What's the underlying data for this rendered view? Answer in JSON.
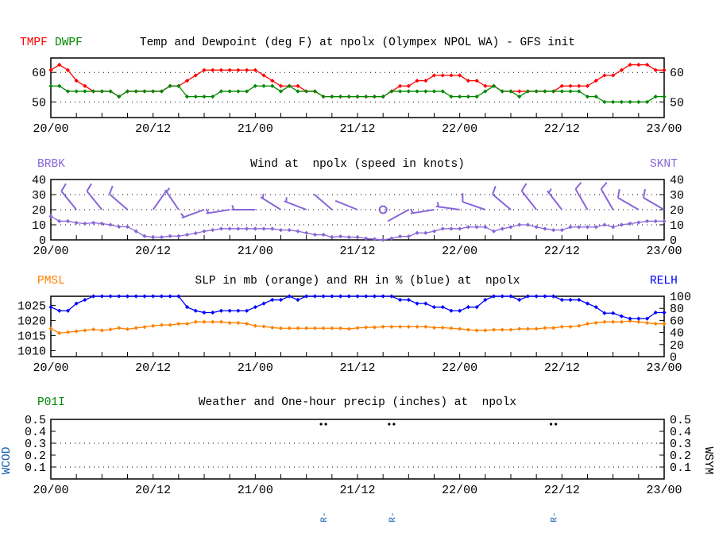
{
  "colors": {
    "tmpf": "#ff0000",
    "dwpf": "#008800",
    "wind": "#8866d8",
    "pmsl": "#ff8000",
    "relh": "#0000ff",
    "p01i": "#008800",
    "wcod": "#1060b0",
    "wsym": "#000000"
  },
  "times": [
    "20/00",
    "20/01",
    "20/02",
    "20/03",
    "20/04",
    "20/05",
    "20/06",
    "20/07",
    "20/08",
    "20/09",
    "20/10",
    "20/11",
    "20/12",
    "20/13",
    "20/14",
    "20/15",
    "20/16",
    "20/17",
    "20/18",
    "20/19",
    "20/20",
    "20/21",
    "20/22",
    "20/23",
    "21/00",
    "21/01",
    "21/02",
    "21/03",
    "21/04",
    "21/05",
    "21/06",
    "21/07",
    "21/08",
    "21/09",
    "21/10",
    "21/11",
    "21/12",
    "21/13",
    "21/14",
    "21/15",
    "21/16",
    "21/17",
    "21/18",
    "21/19",
    "21/20",
    "21/21",
    "21/22",
    "21/23",
    "22/00",
    "22/01",
    "22/02",
    "22/03",
    "22/04",
    "22/05",
    "22/06",
    "22/07",
    "22/08",
    "22/09",
    "22/10",
    "22/11",
    "22/12",
    "22/13",
    "22/14",
    "22/15",
    "22/16",
    "22/17",
    "22/18",
    "22/19",
    "22/20",
    "22/21",
    "22/22",
    "22/23",
    "23/00"
  ],
  "x_tick_labels": [
    "20/00",
    "20/12",
    "21/00",
    "21/12",
    "22/00",
    "22/12",
    "23/00"
  ],
  "chart_data": [
    {
      "type": "line",
      "title": "Temp and Dewpoint (deg F) at npolx (Olympex NPOL WA) - GFS init",
      "left_labels": [
        "TMPF",
        "DWPF"
      ],
      "ylim": [
        44.7,
        64.9
      ],
      "yticks_left": [
        "50",
        "60"
      ],
      "yticks_right": [
        "50",
        "60"
      ],
      "grid": [
        50,
        60
      ],
      "series": [
        {
          "name": "TMPF",
          "color_key": "tmpf",
          "values": [
            60.8,
            62.6,
            60.8,
            57.2,
            55.4,
            53.6,
            53.6,
            53.6,
            51.8,
            53.6,
            53.6,
            53.6,
            53.6,
            53.6,
            55.4,
            55.4,
            57.2,
            59,
            60.8,
            60.8,
            60.8,
            60.8,
            60.8,
            60.8,
            60.8,
            59,
            57.2,
            55.4,
            55.4,
            55.4,
            53.6,
            53.6,
            51.8,
            51.8,
            51.8,
            51.8,
            51.8,
            51.8,
            51.8,
            51.8,
            53.6,
            55.4,
            55.4,
            57.2,
            57.2,
            59,
            59,
            59,
            59,
            57.2,
            57.2,
            55.4,
            55.4,
            53.6,
            53.6,
            53.6,
            53.6,
            53.6,
            53.6,
            53.6,
            55.4,
            55.4,
            55.4,
            55.4,
            57.2,
            59,
            59,
            60.8,
            62.6,
            62.6,
            62.6,
            60.8,
            60.8
          ]
        },
        {
          "name": "DWPF",
          "color_key": "dwpf",
          "values": [
            55.4,
            55.4,
            53.6,
            53.6,
            53.6,
            53.6,
            53.6,
            53.6,
            51.8,
            53.6,
            53.6,
            53.6,
            53.6,
            53.6,
            55.4,
            55.4,
            51.8,
            51.8,
            51.8,
            51.8,
            53.6,
            53.6,
            53.6,
            53.6,
            55.4,
            55.4,
            55.4,
            53.6,
            55.4,
            53.6,
            53.6,
            53.6,
            51.8,
            51.8,
            51.8,
            51.8,
            51.8,
            51.8,
            51.8,
            51.8,
            53.6,
            53.6,
            53.6,
            53.6,
            53.6,
            53.6,
            53.6,
            51.8,
            51.8,
            51.8,
            51.8,
            53.6,
            55.4,
            53.6,
            53.6,
            51.8,
            53.6,
            53.6,
            53.6,
            53.6,
            53.6,
            53.6,
            53.6,
            51.8,
            51.8,
            50,
            50,
            50,
            50,
            50,
            50,
            51.8,
            51.8
          ]
        }
      ]
    },
    {
      "type": "line",
      "title": "Wind at  npolx (speed in knots)",
      "left_labels": [
        "BRBK"
      ],
      "right_label": "SKNT",
      "ylim": [
        0,
        40
      ],
      "yticks_left": [
        "0",
        "10",
        "20",
        "30",
        "40"
      ],
      "yticks_right": [
        "0",
        "10",
        "20",
        "30",
        "40"
      ],
      "grid": [
        10,
        20,
        30
      ],
      "series": [
        {
          "name": "SKNT",
          "color_key": "wind",
          "values": [
            15.6,
            12.4,
            12.4,
            11.3,
            10.8,
            11.3,
            10.8,
            10,
            8.7,
            8.7,
            5.7,
            2.5,
            1.8,
            1.8,
            2.5,
            2.5,
            3.4,
            4.4,
            5.7,
            6.5,
            7.4,
            7.4,
            7.4,
            7.4,
            7.4,
            7.4,
            7.4,
            6.5,
            6.5,
            5.7,
            4.6,
            3.4,
            3.4,
            1.8,
            2.3,
            1.8,
            1.8,
            0.9,
            0.5,
            0,
            0.9,
            2.3,
            2.3,
            4.6,
            4.6,
            5.7,
            7.4,
            7.4,
            7.4,
            8.5,
            8.5,
            8.5,
            5.7,
            7.4,
            8.5,
            10,
            10,
            8.5,
            7.4,
            6.5,
            6.5,
            8.5,
            8.5,
            8.5,
            8.5,
            10,
            8.5,
            10,
            10.8,
            11.5,
            12.4,
            12.4,
            12.4
          ]
        }
      ],
      "barbs": [
        {
          "x": "20/03",
          "dir": 321
        },
        {
          "x": "20/06",
          "dir": 321
        },
        {
          "x": "20/09",
          "dir": 311
        },
        {
          "x": "20/12",
          "dir": 35
        },
        {
          "x": "20/15",
          "dir": 326
        },
        {
          "x": "20/18",
          "dir": 250
        },
        {
          "x": "20/21",
          "dir": 261
        },
        {
          "x": "21/00",
          "dir": 270
        },
        {
          "x": "21/03",
          "dir": 302
        },
        {
          "x": "21/06",
          "dir": 291
        },
        {
          "x": "21/09",
          "dir": 311
        },
        {
          "x": "21/12",
          "dir": 292
        },
        {
          "x": "21/15",
          "dir": null
        },
        {
          "x": "21/18",
          "dir": 241
        },
        {
          "x": "21/21",
          "dir": 261
        },
        {
          "x": "22/00",
          "dir": 278
        },
        {
          "x": "22/03",
          "dir": 289
        },
        {
          "x": "22/06",
          "dir": 310
        },
        {
          "x": "22/09",
          "dir": 322
        },
        {
          "x": "22/12",
          "dir": 322
        },
        {
          "x": "22/15",
          "dir": 330
        },
        {
          "x": "22/18",
          "dir": 330
        },
        {
          "x": "22/21",
          "dir": 300
        },
        {
          "x": "23/00",
          "dir": 300
        }
      ]
    },
    {
      "type": "line",
      "title": "SLP in mb (orange) and RH in % (blue) at  npolx",
      "left_labels": [
        "PMSL"
      ],
      "right_label": "RELH",
      "ylim": [
        1008,
        1028
      ],
      "ylim_right": [
        0,
        100
      ],
      "yticks_left": [
        "1010",
        "1015",
        "1020",
        "1025"
      ],
      "yticks_right": [
        "0",
        "20",
        "40",
        "60",
        "80",
        "100"
      ],
      "grid": [],
      "series": [
        {
          "name": "PMSL",
          "color_key": "pmsl",
          "axis": "left",
          "values": [
            1017.3,
            1015.8,
            1016.1,
            1016.4,
            1016.7,
            1017.0,
            1016.7,
            1017.0,
            1017.5,
            1017.1,
            1017.5,
            1017.8,
            1018.2,
            1018.5,
            1018.5,
            1018.9,
            1018.9,
            1019.5,
            1019.5,
            1019.5,
            1019.5,
            1019.2,
            1019.2,
            1018.9,
            1018.2,
            1018.0,
            1017.6,
            1017.4,
            1017.4,
            1017.4,
            1017.4,
            1017.4,
            1017.4,
            1017.4,
            1017.4,
            1017.2,
            1017.5,
            1017.7,
            1017.7,
            1017.9,
            1017.9,
            1017.9,
            1017.9,
            1017.9,
            1017.9,
            1017.6,
            1017.6,
            1017.4,
            1017.2,
            1016.9,
            1016.7,
            1016.7,
            1016.9,
            1016.9,
            1016.9,
            1017.2,
            1017.2,
            1017.2,
            1017.5,
            1017.5,
            1017.9,
            1017.9,
            1018.2,
            1018.9,
            1019.2,
            1019.5,
            1019.5,
            1019.5,
            1019.8,
            1019.5,
            1019.2,
            1018.9,
            1018.9
          ]
        },
        {
          "name": "RELH",
          "color_key": "relh",
          "axis": "right",
          "values": [
            82,
            76,
            76,
            88,
            94,
            100,
            100,
            100,
            100,
            100,
            100,
            100,
            100,
            100,
            100,
            100,
            82,
            76,
            73,
            73,
            76,
            76,
            76,
            76,
            82,
            88,
            94,
            94,
            100,
            94,
            100,
            100,
            100,
            100,
            100,
            100,
            100,
            100,
            100,
            100,
            100,
            94,
            94,
            88,
            88,
            82,
            82,
            76,
            76,
            82,
            82,
            94,
            100,
            100,
            100,
            94,
            100,
            100,
            100,
            100,
            94,
            94,
            94,
            88,
            82,
            72,
            72,
            67,
            63,
            63,
            63,
            73,
            73
          ]
        }
      ]
    },
    {
      "type": "line",
      "title": "Weather and One-hour precip (inches) at  npolx",
      "left_labels": [
        "P01I"
      ],
      "left_axis_side_label": "WCOD",
      "right_axis_side_label": "WSYM",
      "ylim": [
        0,
        0.5
      ],
      "yticks_left": [
        "0.1",
        "0.2",
        "0.3",
        "0.4",
        "0.5"
      ],
      "yticks_right": [
        "0.1",
        "0.2",
        "0.3",
        "0.4",
        "0.5"
      ],
      "grid": [
        0.1,
        0.3
      ],
      "series": [],
      "weather": [
        {
          "x": "21/08",
          "wcod": "R-",
          "wsym": "rain-light-dots"
        },
        {
          "x": "21/16",
          "wcod": "R-",
          "wsym": "rain-light-dots"
        },
        {
          "x": "22/11",
          "wcod": "R-",
          "wsym": "rain-light-dots"
        }
      ]
    }
  ]
}
